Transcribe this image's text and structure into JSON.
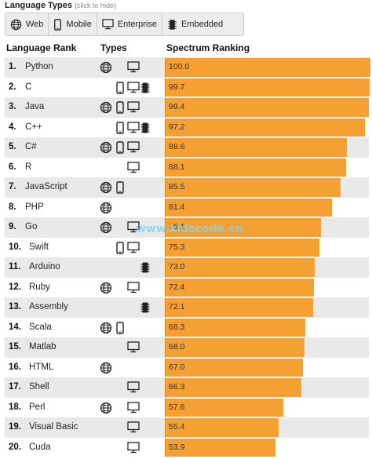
{
  "header": {
    "title": "Language Types",
    "hint": "(click to hide)"
  },
  "filters": [
    {
      "label": "Web",
      "icon": "globe-icon"
    },
    {
      "label": "Mobile",
      "icon": "mobile-icon"
    },
    {
      "label": "Enterprise",
      "icon": "monitor-icon"
    },
    {
      "label": "Embedded",
      "icon": "chip-icon"
    }
  ],
  "columns": {
    "rank": "Language Rank",
    "types": "Types",
    "ranking": "Spectrum Ranking"
  },
  "max_value": 100.0,
  "colors": {
    "bar": "#f5a033",
    "alt_row": "#e9e9e9"
  },
  "rows": [
    {
      "rank": "1.",
      "name": "Python",
      "types": [
        "web",
        "ent"
      ],
      "value": "100.0"
    },
    {
      "rank": "2.",
      "name": "C",
      "types": [
        "mob",
        "ent",
        "emb"
      ],
      "value": "99.7"
    },
    {
      "rank": "3.",
      "name": "Java",
      "types": [
        "web",
        "mob",
        "ent"
      ],
      "value": "99.4"
    },
    {
      "rank": "4.",
      "name": "C++",
      "types": [
        "mob",
        "ent",
        "emb"
      ],
      "value": "97.2"
    },
    {
      "rank": "5.",
      "name": "C#",
      "types": [
        "web",
        "mob",
        "ent"
      ],
      "value": "88.6"
    },
    {
      "rank": "6.",
      "name": "R",
      "types": [
        "ent"
      ],
      "value": "88.1"
    },
    {
      "rank": "7.",
      "name": "JavaScript",
      "types": [
        "web",
        "mob"
      ],
      "value": "85.5"
    },
    {
      "rank": "8.",
      "name": "PHP",
      "types": [
        "web"
      ],
      "value": "81.4"
    },
    {
      "rank": "9.",
      "name": "Go",
      "types": [
        "web",
        "ent"
      ],
      "value": "76.1"
    },
    {
      "rank": "10.",
      "name": "Swift",
      "types": [
        "mob",
        "ent"
      ],
      "value": "75.3"
    },
    {
      "rank": "11.",
      "name": "Arduino",
      "types": [
        "emb"
      ],
      "value": "73.0"
    },
    {
      "rank": "12.",
      "name": "Ruby",
      "types": [
        "web",
        "ent"
      ],
      "value": "72.4"
    },
    {
      "rank": "13.",
      "name": "Assembly",
      "types": [
        "emb"
      ],
      "value": "72.1"
    },
    {
      "rank": "14.",
      "name": "Scala",
      "types": [
        "web",
        "mob"
      ],
      "value": "68.3"
    },
    {
      "rank": "15.",
      "name": "Matlab",
      "types": [
        "ent"
      ],
      "value": "68.0"
    },
    {
      "rank": "16.",
      "name": "HTML",
      "types": [
        "web"
      ],
      "value": "67.0"
    },
    {
      "rank": "17.",
      "name": "Shell",
      "types": [
        "ent"
      ],
      "value": "66.3"
    },
    {
      "rank": "18.",
      "name": "Perl",
      "types": [
        "web",
        "ent"
      ],
      "value": "57.6"
    },
    {
      "rank": "19.",
      "name": "Visual Basic",
      "types": [
        "ent"
      ],
      "value": "55.4"
    },
    {
      "rank": "20.",
      "name": "Cuda",
      "types": [
        "ent"
      ],
      "value": "53.9"
    }
  ],
  "watermark": "www.kidscode.cn"
}
